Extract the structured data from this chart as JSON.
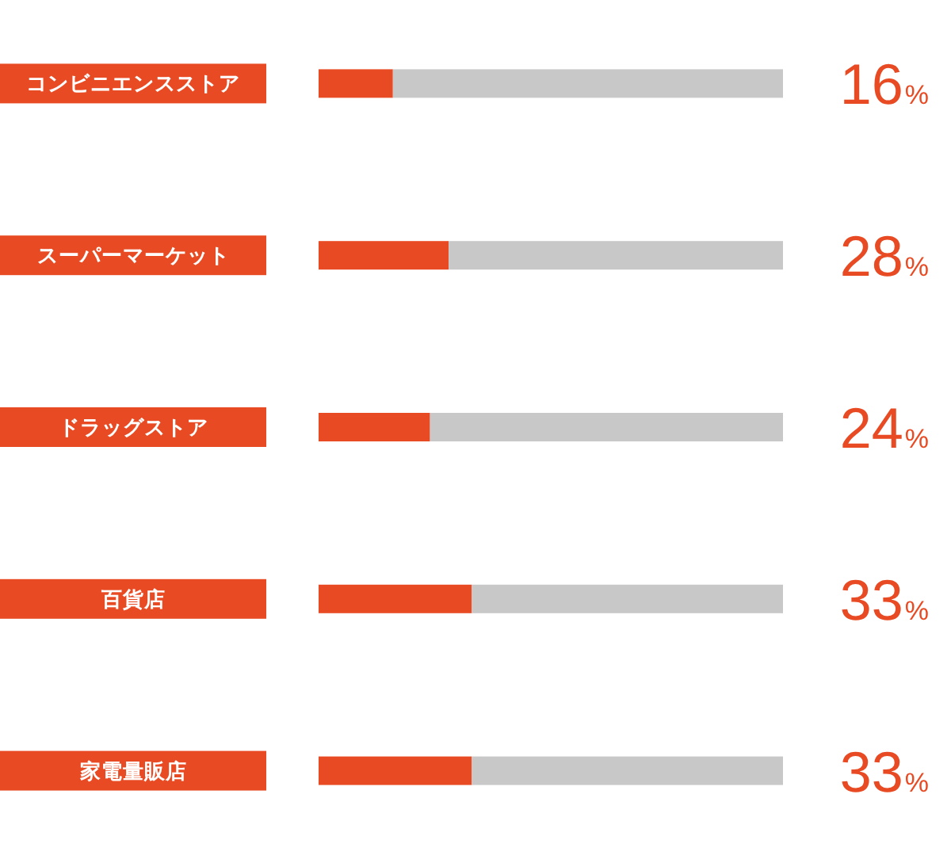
{
  "chart_data": {
    "type": "bar",
    "orientation": "horizontal",
    "stacked": true,
    "categories": [
      "コンビニエンスストア",
      "スーパーマーケット",
      "ドラッグストア",
      "百貨店",
      "家電量販店"
    ],
    "series": [
      {
        "color": "#e84b23",
        "values": [
          16,
          28,
          24,
          33,
          33
        ],
        "value_labels": [
          "16%",
          "28%",
          "24%",
          "33%",
          "33%"
        ]
      },
      {
        "color": "#c8c8c8",
        "values": [
          84,
          72,
          76,
          67,
          67
        ]
      }
    ],
    "tick_labels": "y"
  }
}
